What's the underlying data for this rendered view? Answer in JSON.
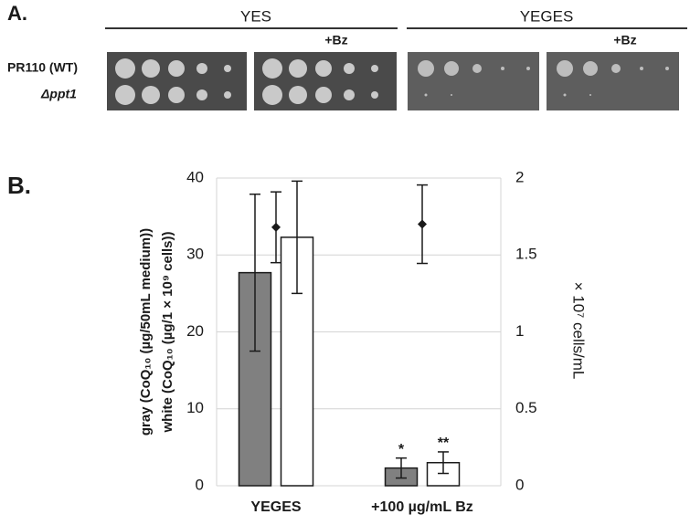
{
  "panel_a": {
    "label": "A.",
    "groups": [
      {
        "title": "YES",
        "treatment": "+Bz"
      },
      {
        "title": "YEGES",
        "treatment": "+Bz"
      }
    ],
    "strains": [
      "PR110 (WT)",
      "Δppt1"
    ]
  },
  "chart_data": {
    "type": "bar",
    "panel_label": "B.",
    "categories": [
      "YEGES",
      "+100 µg/mL Bz"
    ],
    "ylabel": [
      "gray (CoQ₁₀ (µg/50mL medium))",
      "white (CoQ₁₀ (µg/1 × 10⁹ cells))"
    ],
    "y2label": "× 10⁷ cells/mL",
    "ylim": [
      0,
      40
    ],
    "yticks": [
      0,
      10,
      20,
      30,
      40
    ],
    "y2lim": [
      0,
      2
    ],
    "y2ticks": [
      0,
      0.5,
      1,
      1.5,
      2
    ],
    "grid": true,
    "series": [
      {
        "color": "#808080",
        "values": [
          27.7,
          2.3
        ],
        "errors": [
          10.2,
          1.3
        ]
      },
      {
        "color": "#ffffff",
        "values": [
          32.3,
          3.0
        ],
        "errors": [
          7.3,
          1.4
        ]
      },
      {
        "type": "scatter",
        "marker": "diamond",
        "axis": "y2",
        "color": "#1a1a1a",
        "values": [
          1.68,
          1.7
        ],
        "errors": [
          0.23,
          0.255
        ]
      }
    ],
    "annotations": [
      "*",
      "**"
    ]
  }
}
